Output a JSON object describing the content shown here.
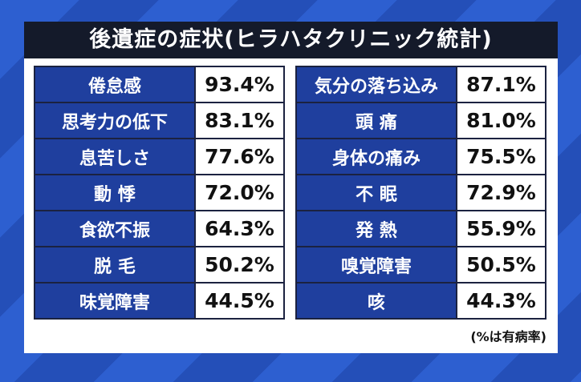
{
  "title": "後遺症の症状(ヒラハタクリニック統計)",
  "tables": [
    {
      "rows": [
        [
          "倦怠感",
          "93.4%"
        ],
        [
          "思考力の低下",
          "83.1%"
        ],
        [
          "息苦しさ",
          "77.6%"
        ],
        [
          "動 悸",
          "72.0%"
        ],
        [
          "食欲不振",
          "64.3%"
        ],
        [
          "脱 毛",
          "50.2%"
        ],
        [
          "味覚障害",
          "44.5%"
        ]
      ]
    },
    {
      "rows": [
        [
          "気分の落ち込み",
          "87.1%"
        ],
        [
          "頭 痛",
          "81.0%"
        ],
        [
          "身体の痛み",
          "75.5%"
        ],
        [
          "不 眠",
          "72.9%"
        ],
        [
          "発 熱",
          "55.9%"
        ],
        [
          "嗅覚障害",
          "50.5%"
        ],
        [
          "咳",
          "44.3%"
        ]
      ]
    }
  ],
  "note": "(%は有病率)"
}
